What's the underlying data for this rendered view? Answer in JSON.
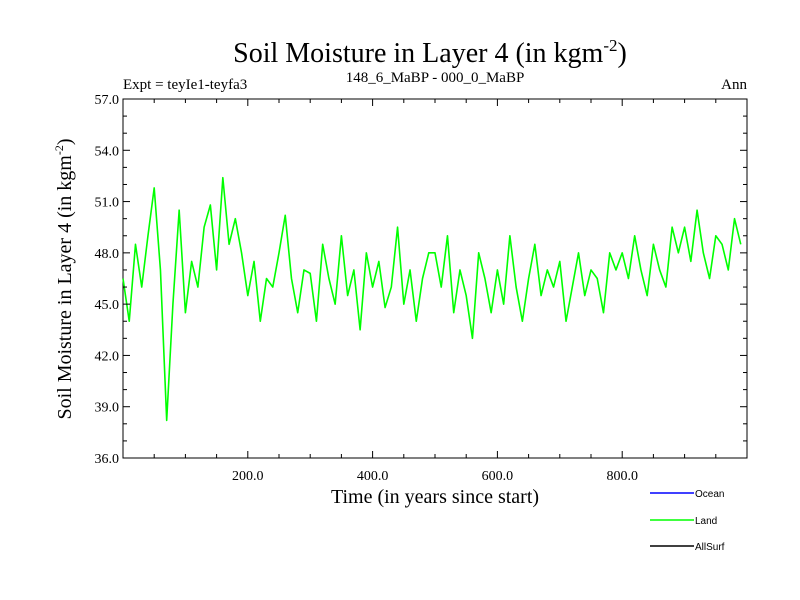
{
  "chart_data": {
    "type": "line",
    "title": "Soil Moisture in Layer 4 (in kgm",
    "title_sup": "-2",
    "title_close": ")",
    "subtitle_left": "Expt = teyIe1-teyfa3",
    "subtitle_center": "148_6_MaBP - 000_0_MaBP",
    "subtitle_right": "Ann",
    "xlabel": "Time (in years since start)",
    "ylabel": "Soil Moisture in Layer 4 (in kgm",
    "ylabel_sup": "-2",
    "ylabel_close": ")",
    "xlim": [
      0,
      1000
    ],
    "ylim": [
      36.0,
      57.0
    ],
    "xticks": [
      200,
      400,
      600,
      800
    ],
    "xtick_labels": [
      "200.0",
      "400.0",
      "600.0",
      "800.0"
    ],
    "yticks": [
      36,
      39,
      42,
      45,
      48,
      51,
      54,
      57
    ],
    "ytick_labels": [
      "36.0",
      "39.0",
      "42.0",
      "45.0",
      "48.0",
      "51.0",
      "54.0",
      "57.0"
    ],
    "legend": [
      {
        "name": "Ocean",
        "color": "#0000ff"
      },
      {
        "name": "Land",
        "color": "#00ff00"
      },
      {
        "name": "AllSurf",
        "color": "#000000"
      }
    ],
    "series": [
      {
        "name": "Land",
        "color": "#00ff00",
        "x_start": 0,
        "x_step": 10,
        "values": [
          46.5,
          44.0,
          48.5,
          46.0,
          49.0,
          51.8,
          47.0,
          38.2,
          45.0,
          50.5,
          44.5,
          47.5,
          46.0,
          49.5,
          50.8,
          47.0,
          52.4,
          48.5,
          50.0,
          48.0,
          45.5,
          47.5,
          44.0,
          46.5,
          46.0,
          48.0,
          50.2,
          46.5,
          44.5,
          47.0,
          46.8,
          44.0,
          48.5,
          46.5,
          45.0,
          49.0,
          45.5,
          47.0,
          43.5,
          48.0,
          46.0,
          47.5,
          44.8,
          46.0,
          49.5,
          45.0,
          47.0,
          44.0,
          46.5,
          48.0,
          48.0,
          46.0,
          49.0,
          44.5,
          47.0,
          45.5,
          43.0,
          48.0,
          46.5,
          44.5,
          47.0,
          45.0,
          49.0,
          46.0,
          44.0,
          46.5,
          48.5,
          45.5,
          47.0,
          46.0,
          47.5,
          44.0,
          46.0,
          48.0,
          45.5,
          47.0,
          46.5,
          44.5,
          48.0,
          47.0,
          48.0,
          46.5,
          49.0,
          47.0,
          45.5,
          48.5,
          47.0,
          46.0,
          49.5,
          48.0,
          49.5,
          47.5,
          50.5,
          48.0,
          46.5,
          49.0,
          48.5,
          47.0,
          50.0,
          48.5
        ]
      },
      {
        "name": "Ocean",
        "color": "#0000ff",
        "values": []
      },
      {
        "name": "AllSurf",
        "color": "#000000",
        "values": []
      }
    ]
  }
}
